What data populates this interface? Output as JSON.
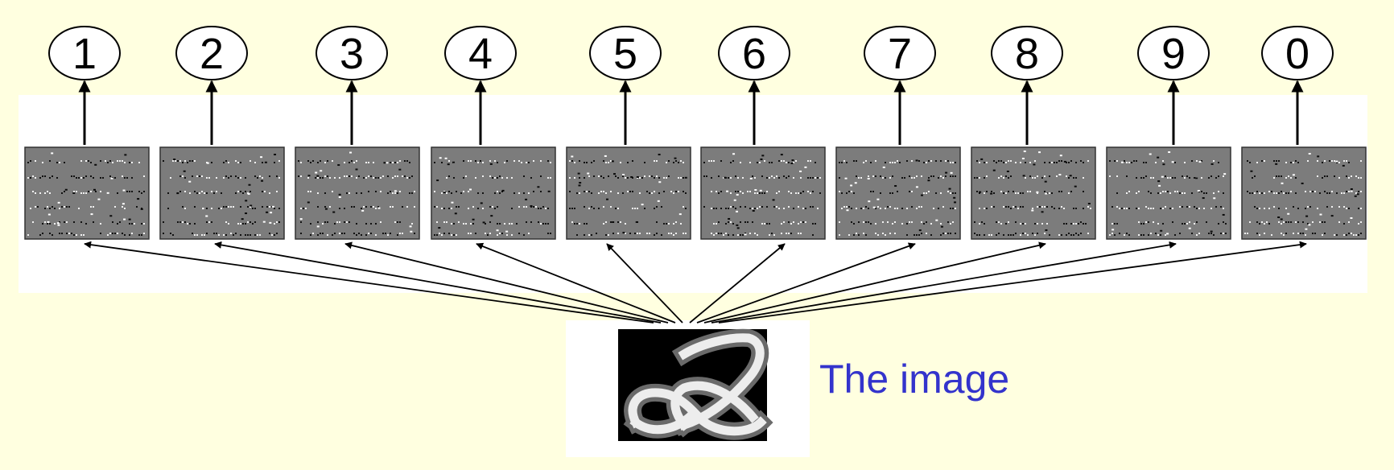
{
  "diagram": {
    "digits": [
      "1",
      "2",
      "3",
      "4",
      "5",
      "6",
      "7",
      "8",
      "9",
      "0"
    ],
    "caption": "The image",
    "colors": {
      "background": "#ffffe0",
      "panel": "#ffffff",
      "weight_map": "#7c7c7c",
      "caption": "#3333cc",
      "stroke": "#000000"
    }
  }
}
